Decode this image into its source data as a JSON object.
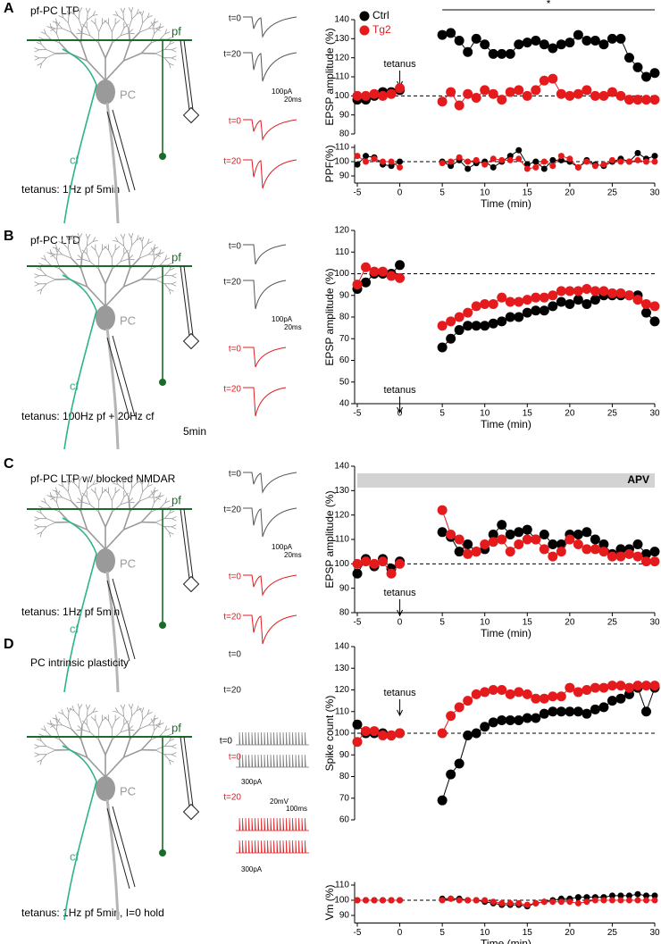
{
  "panels": [
    {
      "letter": "A",
      "title": "pf-PC LTP",
      "protocol": [
        "tetanus: 1Hz pf 5min"
      ],
      "labels": {
        "pf": "pf",
        "pc": "PC",
        "cf": "cf"
      },
      "traces": [
        "t=0",
        "t=20",
        "t=0",
        "t=20"
      ],
      "scale": [
        "100pA",
        "20ms"
      ]
    },
    {
      "letter": "B",
      "title": "pf-PC LTD",
      "protocol": [
        "tetanus: 100Hz pf + 20Hz cf",
        "5min"
      ],
      "labels": {
        "pf": "pf",
        "pc": "PC",
        "cf": "cf"
      },
      "traces": [
        "t=0",
        "t=20",
        "t=0",
        "t=20"
      ],
      "scale": [
        "100pA",
        "20ms"
      ]
    },
    {
      "letter": "C",
      "title": "pf-PC LTP w/ blocked NMDAR",
      "protocol": [
        "tetanus: 1Hz pf 5min"
      ],
      "labels": {
        "pf": "pf",
        "pc": "PC",
        "cf": "cf"
      },
      "traces": [
        "t=0",
        "t=20",
        "t=0",
        "t=20"
      ],
      "scale": [
        "100pA",
        "20ms"
      ]
    },
    {
      "letter": "D",
      "title": "PC intrinsic plasticity",
      "protocol": [
        "tetanus: 1Hz pf 5min, I=0 hold"
      ],
      "labels": {
        "pf": "pf",
        "pc": "PC",
        "cf": "cf"
      },
      "traces": [
        "t=0",
        "t=20",
        "t=0",
        "t=20"
      ],
      "scale": [
        "20mV",
        "100ms"
      ],
      "steps": [
        "300pA",
        "300pA"
      ]
    }
  ],
  "chart_data": [
    {
      "type": "scatter",
      "y_label": "EPSP amplitude (%)",
      "xlim": [
        -5,
        30
      ],
      "ylim": [
        80,
        140
      ],
      "yticks": [
        80,
        90,
        100,
        110,
        120,
        130,
        140
      ],
      "hline": 100,
      "x": [
        -5,
        -4,
        -3,
        -2,
        -1,
        0,
        5,
        6,
        7,
        8,
        9,
        10,
        11,
        12,
        13,
        14,
        15,
        16,
        17,
        18,
        19,
        20,
        21,
        22,
        23,
        24,
        25,
        26,
        27,
        28,
        29,
        30
      ],
      "series": [
        {
          "name": "Ctrl",
          "color": "#000000",
          "values": [
            98,
            98,
            100,
            102,
            102,
            103,
            132,
            133,
            129,
            123,
            130,
            127,
            122,
            122,
            122,
            127,
            128,
            129,
            127,
            125,
            127,
            128,
            132,
            129,
            129,
            127,
            130,
            130,
            120,
            115,
            110,
            112
          ]
        },
        {
          "name": "Tg2",
          "color": "#e41a1c",
          "values": [
            100,
            100,
            101,
            100,
            101,
            104,
            97,
            102,
            95,
            101,
            99,
            103,
            101,
            98,
            102,
            103,
            100,
            103,
            108,
            109,
            101,
            100,
            101,
            103,
            100,
            100,
            102,
            100,
            98,
            98,
            98,
            98
          ]
        }
      ],
      "annotations": [
        {
          "text": "tetanus",
          "x": 0
        }
      ],
      "significance": {
        "label": "*",
        "x": [
          5,
          30
        ]
      }
    },
    {
      "type": "scatter",
      "y_label": "PPF(%)",
      "x_label": "Time (min)",
      "xlim": [
        -5,
        30
      ],
      "xticks": [
        -5,
        0,
        5,
        10,
        15,
        20,
        25,
        30
      ],
      "ylim": [
        85,
        112
      ],
      "yticks": [
        90,
        100,
        110
      ],
      "hline": 100,
      "x": [
        -5,
        -4,
        -3,
        -2,
        -1,
        0,
        5,
        6,
        7,
        8,
        9,
        10,
        11,
        12,
        13,
        14,
        15,
        16,
        17,
        18,
        19,
        20,
        21,
        22,
        23,
        24,
        25,
        26,
        27,
        28,
        29,
        30
      ],
      "series": [
        {
          "color": "#000000",
          "values": [
            98,
            104,
            103,
            98,
            97,
            100,
            100,
            97,
            101,
            95,
            99,
            100,
            96,
            100,
            104,
            108,
            98,
            100,
            95,
            101,
            101,
            100,
            96,
            101,
            98,
            97,
            100,
            102,
            100,
            106,
            102,
            104
          ]
        },
        {
          "color": "#e41a1c",
          "values": [
            104,
            100,
            102,
            100,
            100,
            96,
            99,
            100,
            103,
            100,
            101,
            98,
            102,
            101,
            101,
            102,
            95,
            96,
            100,
            97,
            104,
            102,
            96,
            100,
            97,
            98,
            101,
            100,
            100,
            101,
            100,
            100
          ]
        }
      ]
    },
    {
      "type": "scatter",
      "y_label": "EPSP amplitude (%)",
      "x_label": "Time (min)",
      "xlim": [
        -5,
        30
      ],
      "xticks": [
        -5,
        0,
        5,
        10,
        15,
        20,
        25,
        30
      ],
      "ylim": [
        40,
        120
      ],
      "yticks": [
        40,
        50,
        60,
        70,
        80,
        90,
        100,
        110,
        120
      ],
      "hline": 100,
      "x": [
        -5,
        -4,
        -3,
        -2,
        -1,
        0,
        5,
        6,
        7,
        8,
        9,
        10,
        11,
        12,
        13,
        14,
        15,
        16,
        17,
        18,
        19,
        20,
        21,
        22,
        23,
        24,
        25,
        26,
        27,
        28,
        29,
        30
      ],
      "series": [
        {
          "color": "#000000",
          "values": [
            93,
            96,
            100,
            100,
            100,
            104,
            66,
            70,
            74,
            76,
            76,
            76,
            77,
            78,
            80,
            80,
            82,
            83,
            83,
            85,
            87,
            86,
            88,
            86,
            88,
            90,
            90,
            90,
            90,
            90,
            82,
            78
          ]
        },
        {
          "color": "#e41a1c",
          "values": [
            95,
            103,
            101,
            101,
            99,
            98,
            76,
            78,
            80,
            82,
            85,
            86,
            86,
            89,
            87,
            87,
            88,
            89,
            89,
            90,
            92,
            92,
            92,
            93,
            92,
            92,
            91,
            91,
            90,
            88,
            86,
            85
          ]
        }
      ],
      "annotations": [
        {
          "text": "tetanus",
          "x": 0
        }
      ]
    },
    {
      "type": "scatter",
      "y_label": "EPSP amplitude (%)",
      "x_label": "Time (min)",
      "xlim": [
        -5,
        30
      ],
      "xticks": [
        -5,
        0,
        5,
        10,
        15,
        20,
        25,
        30
      ],
      "ylim": [
        80,
        140
      ],
      "yticks": [
        80,
        90,
        100,
        110,
        120,
        130,
        140
      ],
      "hline": 100,
      "x": [
        -5,
        -4,
        -3,
        -2,
        -1,
        0,
        5,
        6,
        7,
        8,
        9,
        10,
        11,
        12,
        13,
        14,
        15,
        16,
        17,
        18,
        19,
        20,
        21,
        22,
        23,
        24,
        25,
        26,
        27,
        28,
        29,
        30
      ],
      "series": [
        {
          "color": "#000000",
          "values": [
            96,
            102,
            99,
            102,
            98,
            101,
            113,
            111,
            105,
            108,
            105,
            106,
            112,
            116,
            112,
            113,
            114,
            110,
            112,
            108,
            108,
            112,
            112,
            113,
            110,
            108,
            104,
            106,
            106,
            108,
            104,
            105
          ]
        },
        {
          "color": "#e41a1c",
          "values": [
            100,
            101,
            100,
            101,
            96,
            100,
            122,
            112,
            110,
            104,
            105,
            108,
            109,
            110,
            105,
            108,
            110,
            110,
            106,
            103,
            105,
            110,
            108,
            106,
            106,
            105,
            103,
            103,
            104,
            103,
            101,
            101
          ]
        }
      ],
      "annotations": [
        {
          "text": "tetanus",
          "x": 0
        }
      ],
      "band": {
        "label": "APV"
      }
    },
    {
      "type": "scatter",
      "y_label": "Spike count (%)",
      "xlim": [
        -5,
        30
      ],
      "ylim": [
        60,
        140
      ],
      "yticks": [
        60,
        70,
        80,
        90,
        100,
        110,
        120,
        130,
        140
      ],
      "hline": 100,
      "x": [
        -5,
        -4,
        -3,
        -2,
        -1,
        0,
        5,
        6,
        7,
        8,
        9,
        10,
        11,
        12,
        13,
        14,
        15,
        16,
        17,
        18,
        19,
        20,
        21,
        22,
        23,
        24,
        25,
        26,
        27,
        28,
        29,
        30
      ],
      "series": [
        {
          "color": "#000000",
          "values": [
            104,
            100,
            100,
            100,
            99,
            100,
            69,
            81,
            86,
            99,
            100,
            103,
            105,
            106,
            106,
            106,
            107,
            107,
            109,
            110,
            110,
            110,
            110,
            109,
            111,
            112,
            115,
            116,
            118,
            121,
            110,
            121
          ]
        },
        {
          "color": "#e41a1c",
          "values": [
            96,
            101,
            101,
            99,
            99,
            100,
            100,
            108,
            112,
            115,
            118,
            119,
            120,
            120,
            118,
            119,
            118,
            116,
            116,
            117,
            117,
            121,
            119,
            120,
            121,
            121,
            122,
            122,
            121,
            122,
            122,
            122
          ]
        }
      ],
      "annotations": [
        {
          "text": "tetanus",
          "x": 0
        }
      ]
    },
    {
      "type": "scatter",
      "y_label": "Vm (%)",
      "x_label": "Time (min)",
      "xlim": [
        -5,
        30
      ],
      "xticks": [
        -5,
        0,
        5,
        10,
        15,
        20,
        25,
        30
      ],
      "ylim": [
        85,
        112
      ],
      "yticks": [
        90,
        100,
        110
      ],
      "hline": 100,
      "x": [
        -5,
        -4,
        -3,
        -2,
        -1,
        0,
        5,
        6,
        7,
        8,
        9,
        10,
        11,
        12,
        13,
        14,
        15,
        16,
        17,
        18,
        19,
        20,
        21,
        22,
        23,
        24,
        25,
        26,
        27,
        28,
        29,
        30
      ],
      "series": [
        {
          "color": "#000000",
          "values": [
            100,
            100,
            100,
            100,
            100,
            100,
            101,
            101,
            101,
            100,
            100,
            99,
            98,
            97,
            97,
            97,
            96,
            98,
            99,
            100,
            101,
            101,
            102,
            102,
            102,
            102,
            103,
            103,
            103,
            104,
            103,
            103
          ]
        },
        {
          "color": "#e41a1c",
          "values": [
            100,
            100,
            100,
            100,
            100,
            100,
            100,
            101,
            100,
            100,
            100,
            100,
            99,
            98,
            98,
            98,
            97,
            98,
            99,
            99,
            99,
            99,
            98,
            99,
            100,
            100,
            100,
            100,
            100,
            100,
            100,
            100
          ]
        }
      ]
    }
  ]
}
